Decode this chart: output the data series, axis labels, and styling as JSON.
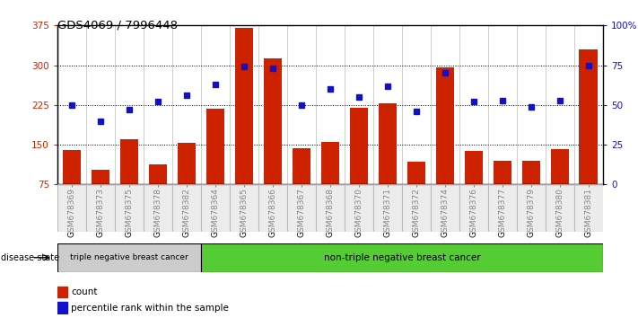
{
  "title": "GDS4069 / 7996448",
  "samples": [
    "GSM678369",
    "GSM678373",
    "GSM678375",
    "GSM678378",
    "GSM678382",
    "GSM678364",
    "GSM678365",
    "GSM678366",
    "GSM678367",
    "GSM678368",
    "GSM678370",
    "GSM678371",
    "GSM678372",
    "GSM678374",
    "GSM678376",
    "GSM678377",
    "GSM678379",
    "GSM678380",
    "GSM678381"
  ],
  "bar_values": [
    140,
    103,
    160,
    113,
    153,
    218,
    370,
    312,
    143,
    155,
    220,
    228,
    118,
    296,
    138,
    120,
    119,
    142,
    330
  ],
  "dot_values_pct": [
    50,
    40,
    47,
    52,
    56,
    63,
    74,
    73,
    50,
    60,
    55,
    62,
    46,
    70,
    52,
    53,
    49,
    53,
    75
  ],
  "n_triple_neg": 5,
  "n_non_triple_neg": 14,
  "group1_label": "triple negative breast cancer",
  "group2_label": "non-triple negative breast cancer",
  "disease_state_label": "disease state",
  "legend_count": "count",
  "legend_percentile": "percentile rank within the sample",
  "ylim_left": [
    75,
    375
  ],
  "ylim_right": [
    0,
    100
  ],
  "yticks_left": [
    75,
    150,
    225,
    300,
    375
  ],
  "yticks_right": [
    0,
    25,
    50,
    75,
    100
  ],
  "bar_color": "#cc2200",
  "dot_color": "#1111cc",
  "bg_color_group1": "#cccccc",
  "bg_color_group2": "#55cc33",
  "title_color": "#000000",
  "left_tick_color": "#cc2200",
  "right_tick_color": "#1111cc"
}
